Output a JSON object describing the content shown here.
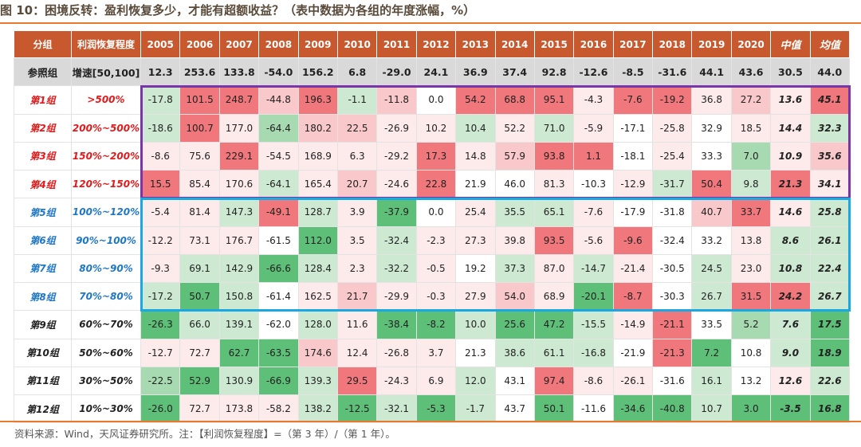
{
  "title": "图 10：困境反转：盈利恢复多少，才能有超额收益？（表中数据为各组的年度涨幅，%）",
  "source": "资料来源：Wind，天风证券研究所。注：【利润恢复程度】=（第 3 年）/（第 1 年）。",
  "headers": [
    "分组",
    "利润恢复程度",
    "2005",
    "2006",
    "2007",
    "2008",
    "2009",
    "2010",
    "2011",
    "2012",
    "2013",
    "2014",
    "2015",
    "2016",
    "2017",
    "2018",
    "2019",
    "2020",
    "中值",
    "均值"
  ],
  "reference_row": {
    "group": "参照组",
    "range": "增速[50,100]",
    "values": [
      "12.3",
      "253.6",
      "133.8",
      "-54.0",
      "156.2",
      "6.8",
      "-29.0",
      "24.1",
      "36.9",
      "37.4",
      "92.8",
      "-12.6",
      "-8.5",
      "-31.6",
      "44.1",
      "43.6",
      "30.5",
      "44.0"
    ]
  },
  "rows": [
    {
      "group": "第1组",
      "range": ">500%",
      "label_color": "red",
      "values": [
        "-17.8",
        "101.5",
        "248.7",
        "-44.8",
        "196.3",
        "-1.1",
        "-11.8",
        "0.0",
        "54.2",
        "68.8",
        "95.1",
        "-4.3",
        "-7.6",
        "-19.2",
        "36.8",
        "27.2"
      ],
      "median": "13.6",
      "mean": "45.1",
      "colors": [
        "#cde9d2",
        "#f0777b",
        "#f0777b",
        "#f8c8ca",
        "#f0777b",
        "#cde9d2",
        "#f8c8ca",
        "#ffffff",
        "#f0777b",
        "#f0777b",
        "#f0777b",
        "#fdebec",
        "#f0777b",
        "#f0777b",
        "#fdebec",
        "#f8c8ca",
        "#fdebec",
        "#f0777b"
      ]
    },
    {
      "group": "第2组",
      "range": "200%~500%",
      "label_color": "red",
      "values": [
        "-18.6",
        "100.7",
        "177.0",
        "-64.4",
        "180.2",
        "22.5",
        "-26.9",
        "10.2",
        "10.4",
        "52.2",
        "71.0",
        "-5.9",
        "-17.1",
        "-25.8",
        "32.9",
        "18.5"
      ],
      "median": "14.4",
      "mean": "32.3",
      "colors": [
        "#cde9d2",
        "#f0777b",
        "#fdebec",
        "#a8dab2",
        "#f8c8ca",
        "#f8c8ca",
        "#fdebec",
        "#fdebec",
        "#cde9d2",
        "#fdebec",
        "#cde9d2",
        "#fdebec",
        "#ffffff",
        "#fdebec",
        "#ffffff",
        "#fdebec",
        "#fdebec",
        "#cde9d2"
      ]
    },
    {
      "group": "第3组",
      "range": "150%~200%",
      "label_color": "red",
      "values": [
        "-8.6",
        "75.6",
        "229.1",
        "-54.5",
        "168.9",
        "6.3",
        "-29.2",
        "17.3",
        "14.8",
        "57.9",
        "93.8",
        "1.1",
        "-18.1",
        "-25.4",
        "33.3",
        "7.0"
      ],
      "median": "10.9",
      "mean": "35.6",
      "colors": [
        "#fdebec",
        "#fdebec",
        "#f0777b",
        "#fdebec",
        "#fdebec",
        "#fdebec",
        "#fdebec",
        "#f0777b",
        "#fdebec",
        "#f8c8ca",
        "#f0777b",
        "#f0777b",
        "#ffffff",
        "#fdebec",
        "#ffffff",
        "#a8dab2",
        "#fdebec",
        "#f8c8ca"
      ]
    },
    {
      "group": "第4组",
      "range": "120%~150%",
      "label_color": "red",
      "values": [
        "15.5",
        "85.4",
        "170.6",
        "-64.1",
        "165.4",
        "20.7",
        "-24.6",
        "22.8",
        "21.9",
        "46.0",
        "81.3",
        "-10.3",
        "-12.9",
        "-31.7",
        "50.4",
        "9.8"
      ],
      "median": "21.3",
      "mean": "34.1",
      "colors": [
        "#f0777b",
        "#fdebec",
        "#fdebec",
        "#cde9d2",
        "#fdebec",
        "#f8c8ca",
        "#fdebec",
        "#f0777b",
        "#ffffff",
        "#ffffff",
        "#fdebec",
        "#ffffff",
        "#fdebec",
        "#cde9d2",
        "#f0777b",
        "#cde9d2",
        "#f0777b",
        "#fdebec"
      ]
    },
    {
      "group": "第5组",
      "range": "100%~120%",
      "label_color": "blue",
      "values": [
        "-5.4",
        "81.4",
        "147.3",
        "-49.1",
        "128.7",
        "3.9",
        "-37.9",
        "0.0",
        "25.4",
        "35.5",
        "65.1",
        "-7.6",
        "-17.9",
        "-31.8",
        "40.7",
        "33.7"
      ],
      "median": "14.6",
      "mean": "25.8",
      "colors": [
        "#fdebec",
        "#fdebec",
        "#cde9d2",
        "#f0777b",
        "#cde9d2",
        "#fdebec",
        "#5ebf78",
        "#ffffff",
        "#fdebec",
        "#cde9d2",
        "#cde9d2",
        "#fdebec",
        "#ffffff",
        "#ffffff",
        "#f8c8ca",
        "#f0777b",
        "#fdebec",
        "#cde9d2"
      ]
    },
    {
      "group": "第6组",
      "range": "90%~100%",
      "label_color": "blue",
      "values": [
        "-12.2",
        "73.1",
        "176.7",
        "-61.5",
        "112.0",
        "3.5",
        "-32.4",
        "-2.3",
        "27.3",
        "39.8",
        "93.5",
        "-5.6",
        "-9.6",
        "-32.4",
        "33.2",
        "13.8"
      ],
      "median": "8.6",
      "mean": "26.1",
      "colors": [
        "#fdebec",
        "#fdebec",
        "#fdebec",
        "#ffffff",
        "#5ebf78",
        "#fdebec",
        "#cde9d2",
        "#fdebec",
        "#fdebec",
        "#fdebec",
        "#f0777b",
        "#fdebec",
        "#f0777b",
        "#ffffff",
        "#ffffff",
        "#fdebec",
        "#cde9d2",
        "#cde9d2"
      ]
    },
    {
      "group": "第7组",
      "range": "80%~90%",
      "label_color": "blue",
      "values": [
        "-9.3",
        "69.1",
        "142.9",
        "-66.6",
        "128.4",
        "2.3",
        "-32.2",
        "-0.5",
        "19.2",
        "37.3",
        "87.0",
        "-14.7",
        "-21.4",
        "-30.5",
        "24.5",
        "23.0"
      ],
      "median": "10.8",
      "mean": "22.4",
      "colors": [
        "#fdebec",
        "#cde9d2",
        "#cde9d2",
        "#5ebf78",
        "#cde9d2",
        "#fdebec",
        "#cde9d2",
        "#fdebec",
        "#ffffff",
        "#cde9d2",
        "#fdebec",
        "#cde9d2",
        "#fdebec",
        "#ffffff",
        "#cde9d2",
        "#fdebec",
        "#cde9d2",
        "#cde9d2"
      ]
    },
    {
      "group": "第8组",
      "range": "70%~80%",
      "label_color": "blue",
      "values": [
        "-17.2",
        "50.7",
        "150.8",
        "-61.4",
        "162.5",
        "21.7",
        "-29.9",
        "-0.3",
        "27.9",
        "54.0",
        "68.9",
        "-20.1",
        "-8.7",
        "-30.3",
        "26.7",
        "31.5"
      ],
      "median": "24.2",
      "mean": "26.7",
      "colors": [
        "#cde9d2",
        "#5ebf78",
        "#cde9d2",
        "#ffffff",
        "#fdebec",
        "#f8c8ca",
        "#fdebec",
        "#fdebec",
        "#fdebec",
        "#f8c8ca",
        "#fdebec",
        "#5ebf78",
        "#f0777b",
        "#ffffff",
        "#cde9d2",
        "#f0777b",
        "#f0777b",
        "#cde9d2"
      ]
    },
    {
      "group": "第9组",
      "range": "60%~70%",
      "label_color": "black",
      "values": [
        "-26.3",
        "66.0",
        "139.1",
        "-62.0",
        "128.0",
        "11.6",
        "-38.4",
        "-8.2",
        "10.0",
        "25.6",
        "47.2",
        "-15.5",
        "-14.9",
        "-21.1",
        "33.5",
        "5.2"
      ],
      "median": "7.6",
      "mean": "17.5",
      "colors": [
        "#5ebf78",
        "#cde9d2",
        "#cde9d2",
        "#ffffff",
        "#cde9d2",
        "#fdebec",
        "#5ebf78",
        "#5ebf78",
        "#cde9d2",
        "#5ebf78",
        "#5ebf78",
        "#cde9d2",
        "#fdebec",
        "#f0777b",
        "#ffffff",
        "#a8dab2",
        "#cde9d2",
        "#5ebf78"
      ]
    },
    {
      "group": "第10组",
      "range": "50%~60%",
      "label_color": "black",
      "values": [
        "-12.7",
        "72.7",
        "62.7",
        "-63.5",
        "174.6",
        "12.4",
        "-26.8",
        "3.7",
        "21.3",
        "38.6",
        "61.1",
        "-16.8",
        "-21.9",
        "-21.3",
        "7.2",
        "10.8"
      ],
      "median": "9.0",
      "mean": "18.9",
      "colors": [
        "#fdebec",
        "#fdebec",
        "#5ebf78",
        "#5ebf78",
        "#f8c8ca",
        "#fdebec",
        "#fdebec",
        "#fdebec",
        "#ffffff",
        "#cde9d2",
        "#cde9d2",
        "#cde9d2",
        "#ffffff",
        "#f0777b",
        "#5ebf78",
        "#ffffff",
        "#cde9d2",
        "#5ebf78"
      ]
    },
    {
      "group": "第11组",
      "range": "30%~50%",
      "label_color": "black",
      "values": [
        "-22.5",
        "52.9",
        "130.9",
        "-66.9",
        "139.3",
        "29.5",
        "-24.3",
        "6.9",
        "12.0",
        "43.1",
        "97.4",
        "-8.6",
        "-26.1",
        "-31.6",
        "16.1",
        "13.2"
      ],
      "median": "12.6",
      "mean": "22.6",
      "colors": [
        "#a8dab2",
        "#5ebf78",
        "#cde9d2",
        "#5ebf78",
        "#cde9d2",
        "#f0777b",
        "#fdebec",
        "#fdebec",
        "#cde9d2",
        "#ffffff",
        "#f0777b",
        "#fdebec",
        "#fdebec",
        "#ffffff",
        "#cde9d2",
        "#ffffff",
        "#fdebec",
        "#cde9d2"
      ]
    },
    {
      "group": "第12组",
      "range": "10%~30%",
      "label_color": "black",
      "values": [
        "-26.0",
        "72.7",
        "173.8",
        "-58.2",
        "138.2",
        "-12.5",
        "-32.1",
        "-5.3",
        "-1.7",
        "43.7",
        "50.1",
        "-11.6",
        "-34.6",
        "-40.8",
        "10.7",
        "3.0"
      ],
      "median": "-3.5",
      "mean": "16.8",
      "colors": [
        "#5ebf78",
        "#fdebec",
        "#fdebec",
        "#fdebec",
        "#cde9d2",
        "#5ebf78",
        "#cde9d2",
        "#5ebf78",
        "#cde9d2",
        "#ffffff",
        "#5ebf78",
        "#ffffff",
        "#5ebf78",
        "#5ebf78",
        "#cde9d2",
        "#5ebf78",
        "#5ebf78",
        "#5ebf78"
      ]
    }
  ],
  "colors": {
    "header_bg": "#c8592e",
    "reference_bg": "#d9d9d9",
    "red_label": "#e31a1c",
    "blue_label": "#1f77c9",
    "purple_box": "#7a35a8",
    "blue_box": "#19a8e3",
    "rule": "#e87a2f"
  }
}
